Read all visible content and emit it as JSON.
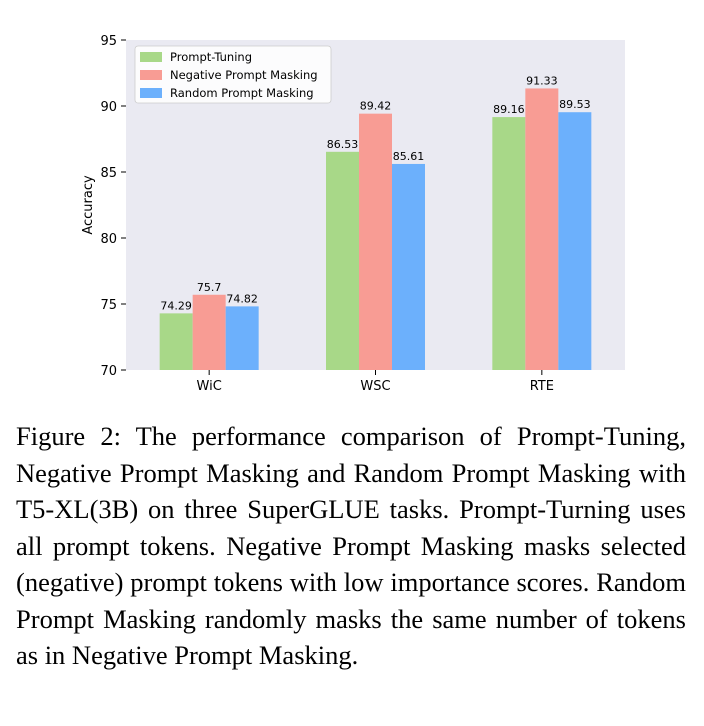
{
  "chart_data": {
    "type": "bar",
    "categories": [
      "WiC",
      "WSC",
      "RTE"
    ],
    "series": [
      {
        "name": "Prompt-Tuning",
        "color": "#a8d888",
        "values": [
          74.29,
          86.53,
          89.16
        ],
        "labels": [
          "74.29",
          "86.53",
          "89.16"
        ]
      },
      {
        "name": "Negative Prompt Masking",
        "color": "#f89c94",
        "values": [
          75.7,
          89.42,
          91.33
        ],
        "labels": [
          "75.7",
          "89.42",
          "91.33"
        ]
      },
      {
        "name": "Random Prompt Masking",
        "color": "#6cb0fc",
        "values": [
          74.82,
          85.61,
          89.53
        ],
        "labels": [
          "74.82",
          "85.61",
          "89.53"
        ]
      }
    ],
    "xlabel": "",
    "ylabel": "Accuracy",
    "ylim": [
      70,
      95
    ],
    "yticks": [
      70,
      75,
      80,
      85,
      90,
      95
    ],
    "legend_position": "top-left",
    "background": "#eaeaf2",
    "grid": false
  },
  "caption": "Figure 2: The performance comparison of Prompt-Tuning, Negative Prompt Masking and Random Prompt Masking with T5-XL(3B) on three SuperGLUE tasks. Prompt-Turning uses all prompt tokens. Negative Prompt Masking masks selected (negative) prompt tokens with low importance scores. Random Prompt Masking randomly masks the same number of tokens as in Negative Prompt Masking."
}
